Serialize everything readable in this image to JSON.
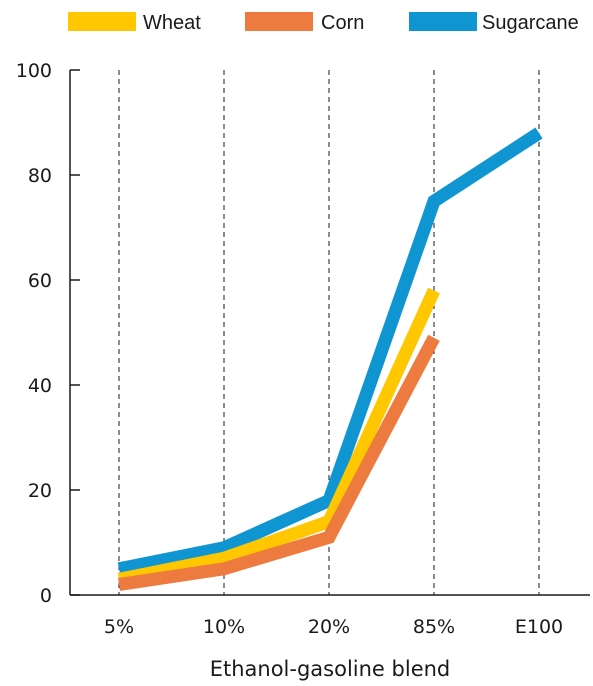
{
  "chart_data": {
    "type": "line",
    "categories": [
      "5%",
      "10%",
      "20%",
      "85%",
      "E100"
    ],
    "series": [
      {
        "name": "Sugarcane",
        "color": "#0f96d2",
        "values": [
          5,
          9,
          18,
          75,
          88
        ]
      },
      {
        "name": "Wheat",
        "color": "#ffc700",
        "values": [
          3,
          7,
          14,
          58,
          null
        ]
      },
      {
        "name": "Corn",
        "color": "#ed7a3e",
        "values": [
          2,
          5,
          11,
          49,
          null
        ]
      }
    ],
    "legend": [
      {
        "name": "Wheat",
        "color": "#ffc700"
      },
      {
        "name": "Corn",
        "color": "#ed7a3e"
      },
      {
        "name": "Sugarcane",
        "color": "#0f96d2"
      }
    ],
    "xlabel": "Ethanol-gasoline blend",
    "ylabel": "",
    "ylim": [
      0,
      100
    ],
    "yticks": [
      0,
      20,
      40,
      60,
      80,
      100
    ],
    "grid": "vertical dashed",
    "legend_position": "top"
  }
}
